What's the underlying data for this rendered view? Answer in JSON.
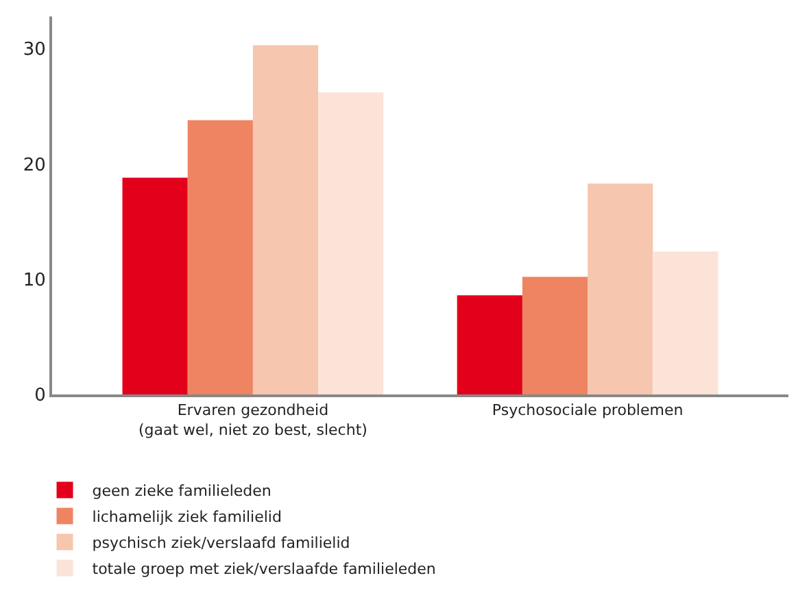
{
  "chart_data": {
    "type": "bar",
    "categories": [
      "Ervaren gezondheid\n(gaat wel, niet zo best, slecht)",
      "Psychosociale problemen"
    ],
    "series": [
      {
        "name": "geen zieke familieleden",
        "color": "#e2001a",
        "values": [
          18.8,
          8.6
        ]
      },
      {
        "name": "lichamelijk ziek familielid",
        "color": "#ee8462",
        "values": [
          23.8,
          10.2
        ]
      },
      {
        "name": "psychisch ziek/verslaafd familielid",
        "color": "#f7c6ae",
        "values": [
          30.3,
          18.3
        ]
      },
      {
        "name": "totale groep met ziek/verslaafde familieleden",
        "color": "#fce3d7",
        "values": [
          26.2,
          12.4
        ]
      }
    ],
    "ylim": [
      0,
      32.8
    ],
    "yticks": [
      0,
      10,
      20,
      30
    ],
    "legend": "bottom"
  }
}
